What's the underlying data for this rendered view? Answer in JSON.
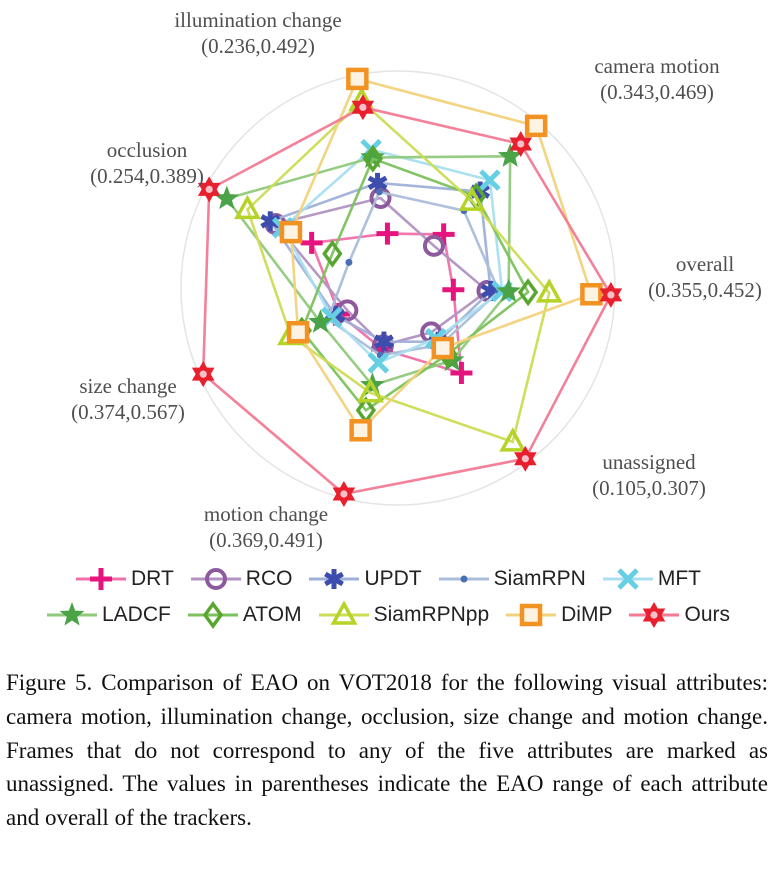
{
  "figure": {
    "caption": "Figure 5. Comparison of EAO on VOT2018 for the following visual attributes: camera motion, illumination change, occlusion, size change and motion change. Frames that do not correspond to any of the five attributes are marked as unassigned. The values in parentheses indicate the EAO range of each attribute and overall of the trackers."
  },
  "chart_data": {
    "type": "radar",
    "note": "per-tracker axis values estimated from marker positions; axis min/max read from the printed ranges",
    "axes": [
      {
        "label": "illumination change",
        "range_text": "(0.236,0.492)",
        "min": 0.236,
        "max": 0.492
      },
      {
        "label": "camera motion",
        "range_text": "(0.343,0.469)",
        "min": 0.343,
        "max": 0.469
      },
      {
        "label": "overall",
        "range_text": "(0.355,0.452)",
        "min": 0.355,
        "max": 0.452
      },
      {
        "label": "unassigned",
        "range_text": "(0.105,0.307)",
        "min": 0.105,
        "max": 0.307
      },
      {
        "label": "motion change",
        "range_text": "(0.369,0.491)",
        "min": 0.369,
        "max": 0.491
      },
      {
        "label": "size change",
        "range_text": "(0.374,0.567)",
        "min": 0.374,
        "max": 0.567
      },
      {
        "label": "occlusion",
        "range_text": "(0.254,0.389)",
        "min": 0.254,
        "max": 0.389
      }
    ],
    "axis_order_note": "values arrays follow axes order: illumination, camera, overall, unassigned, motion, size, occlusion",
    "series": [
      {
        "name": "DRT",
        "marker": "plus",
        "marker_color": "#e5147e",
        "line_color": "#f06fa8",
        "values": [
          0.236,
          0.355,
          0.355,
          0.17,
          0.375,
          0.385,
          0.29
        ]
      },
      {
        "name": "RCO",
        "marker": "circle",
        "marker_color": "#8d5a9d",
        "line_color": "#b292c2",
        "values": [
          0.295,
          0.343,
          0.376,
          0.105,
          0.372,
          0.374,
          0.325
        ]
      },
      {
        "name": "UPDT",
        "marker": "asterisk",
        "marker_color": "#3c4dae",
        "line_color": "#9fb0d8",
        "values": [
          0.32,
          0.4,
          0.378,
          0.12,
          0.369,
          0.39,
          0.33
        ]
      },
      {
        "name": "SiamRPN",
        "marker": "dot",
        "marker_color": "#4a6fb5",
        "line_color": "#aabdd9",
        "values": [
          0.305,
          0.38,
          0.383,
          0.125,
          0.38,
          0.4,
          0.254
        ]
      },
      {
        "name": "MFT",
        "marker": "xcross",
        "marker_color": "#67cfe3",
        "line_color": "#a9dff0",
        "values": [
          0.375,
          0.412,
          0.385,
          0.115,
          0.386,
          0.395,
          0.318
        ]
      },
      {
        "name": "LADCF",
        "marker": "star5",
        "marker_color": "#4aa347",
        "line_color": "#90c97c",
        "values": [
          0.362,
          0.437,
          0.389,
          0.15,
          0.404,
          0.41,
          0.372
        ]
      },
      {
        "name": "ATOM",
        "marker": "diamond",
        "marker_color": "#58a62f",
        "line_color": "#7cc25c",
        "values": [
          0.36,
          0.395,
          0.401,
          0.14,
          0.424,
          0.435,
          0.27
        ]
      },
      {
        "name": "SiamRPNpp",
        "marker": "triangle",
        "marker_color": "#b6d327",
        "line_color": "#ccdc55",
        "values": [
          0.455,
          0.39,
          0.414,
          0.28,
          0.41,
          0.45,
          0.352
        ]
      },
      {
        "name": "DiMP",
        "marker": "square",
        "marker_color": "#f29222",
        "line_color": "#f2d27c",
        "values": [
          0.492,
          0.469,
          0.44,
          0.13,
          0.44,
          0.44,
          0.31
        ]
      },
      {
        "name": "Ours",
        "marker": "star6",
        "marker_color": "#e81f2d",
        "line_color": "#f27a93",
        "values": [
          0.445,
          0.45,
          0.452,
          0.307,
          0.491,
          0.567,
          0.389
        ]
      }
    ],
    "legend_rows": [
      [
        "DRT",
        "RCO",
        "UPDT",
        "SiamRPN",
        "MFT"
      ],
      [
        "LADCF",
        "ATOM",
        "SiamRPNpp",
        "DiMP",
        "Ours"
      ]
    ],
    "grid": "faint outer ring",
    "legend_position": "below chart, two centered rows"
  }
}
